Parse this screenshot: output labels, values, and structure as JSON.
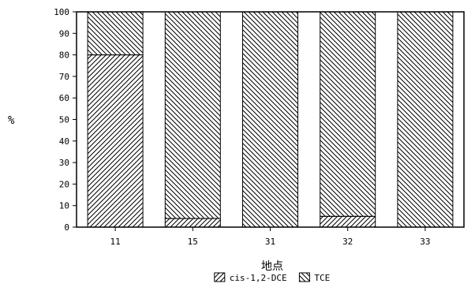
{
  "chart_data": {
    "type": "bar",
    "stacked": true,
    "categories": [
      "11",
      "15",
      "31",
      "32",
      "33"
    ],
    "series": [
      {
        "name": "cis-1,2-DCE",
        "values": [
          80,
          4,
          0,
          5,
          0
        ],
        "pattern": "diagonal-up"
      },
      {
        "name": "TCE",
        "values": [
          20,
          96,
          100,
          95,
          100
        ],
        "pattern": "diagonal-down"
      }
    ],
    "ylabel": "%",
    "xlabel": "地点",
    "ylim": [
      0,
      100
    ],
    "yticks": [
      0,
      10,
      20,
      30,
      40,
      50,
      60,
      70,
      80,
      90,
      100
    ],
    "grid": false,
    "legend_position": "bottom"
  }
}
